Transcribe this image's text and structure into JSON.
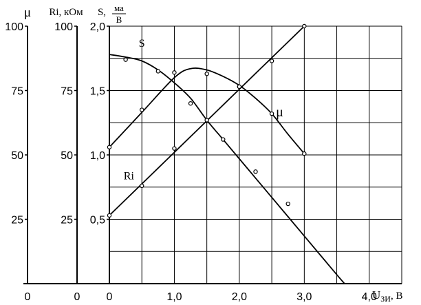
{
  "chart_data": {
    "type": "line",
    "x_axis": {
      "label_main": "U",
      "label_sub": "ЗИ",
      "label_unit": ", В",
      "ticks": [
        0,
        1.0,
        2.0,
        3.0,
        4.0
      ],
      "tick_labels": [
        "0",
        "1,0",
        "2,0",
        "3,0",
        "4,0"
      ],
      "range": [
        0,
        4.5
      ],
      "grid_step": 0.5
    },
    "y_axes": [
      {
        "id": "mu",
        "title": "μ",
        "range": [
          0,
          100
        ],
        "ticks": [
          0,
          25,
          50,
          75,
          100
        ],
        "tick_labels": [
          "0",
          "25",
          "50",
          "75",
          "100"
        ]
      },
      {
        "id": "ri",
        "title": "Ri, кОм",
        "range": [
          0,
          100
        ],
        "ticks": [
          0,
          25,
          50,
          75,
          100
        ],
        "tick_labels": [
          "0",
          "25",
          "50",
          "75",
          "100"
        ]
      },
      {
        "id": "s",
        "title_main": "S,",
        "title_num": "ма",
        "title_den": "В",
        "range": [
          0,
          2.0
        ],
        "ticks": [
          0,
          0.5,
          1.0,
          1.5,
          2.0
        ],
        "tick_labels": [
          "0",
          "0,5",
          "1,0",
          "1,5",
          "2,0"
        ]
      }
    ],
    "grid": true,
    "series": [
      {
        "name": "S",
        "axis": "s",
        "line": [
          [
            0,
            1.78
          ],
          [
            0.25,
            1.76
          ],
          [
            0.5,
            1.73
          ],
          [
            0.75,
            1.66
          ],
          [
            1.0,
            1.56
          ],
          [
            1.25,
            1.44
          ],
          [
            1.5,
            1.27
          ],
          [
            1.75,
            1.12
          ],
          [
            2.0,
            0.97
          ],
          [
            2.25,
            0.82
          ],
          [
            2.5,
            0.67
          ],
          [
            2.75,
            0.52
          ],
          [
            3.0,
            0.37
          ],
          [
            3.25,
            0.22
          ],
          [
            3.5,
            0.07
          ],
          [
            3.62,
            0.0
          ]
        ],
        "points": [
          [
            0.25,
            1.74
          ],
          [
            0.75,
            1.65
          ],
          [
            1.25,
            1.4
          ],
          [
            1.75,
            1.12
          ],
          [
            2.25,
            0.87
          ],
          [
            2.75,
            0.62
          ]
        ]
      },
      {
        "name": "μ",
        "axis": "mu",
        "line": [
          [
            0,
            53
          ],
          [
            0.5,
            66.5
          ],
          [
            1.0,
            80
          ],
          [
            1.25,
            83.5
          ],
          [
            1.5,
            83
          ],
          [
            1.75,
            80.5
          ],
          [
            2.0,
            77
          ],
          [
            2.25,
            72
          ],
          [
            2.5,
            66
          ],
          [
            2.75,
            58
          ],
          [
            3.0,
            50.5
          ]
        ],
        "points": [
          [
            0,
            53
          ],
          [
            0.5,
            67.5
          ],
          [
            1.0,
            82
          ],
          [
            1.5,
            81.5
          ],
          [
            2.0,
            76.5
          ],
          [
            2.5,
            66
          ],
          [
            3.0,
            50.5
          ]
        ]
      },
      {
        "name": "Ri",
        "axis": "ri",
        "line": [
          [
            0,
            26.5
          ],
          [
            3.0,
            100
          ]
        ],
        "points": [
          [
            0,
            26.5
          ],
          [
            0.5,
            38
          ],
          [
            1.0,
            52.5
          ],
          [
            1.5,
            63.5
          ],
          [
            2.0,
            76.5
          ],
          [
            2.5,
            86.5
          ],
          [
            3.0,
            100
          ]
        ]
      }
    ],
    "curve_labels": [
      {
        "text": "S",
        "x": 0.5,
        "y_axis": "s",
        "y": 1.84
      },
      {
        "text": "μ",
        "x": 2.62,
        "y_axis": "s",
        "y": 1.3
      },
      {
        "text": "Ri",
        "x": 0.3,
        "y_axis": "s",
        "y": 0.81
      }
    ]
  }
}
